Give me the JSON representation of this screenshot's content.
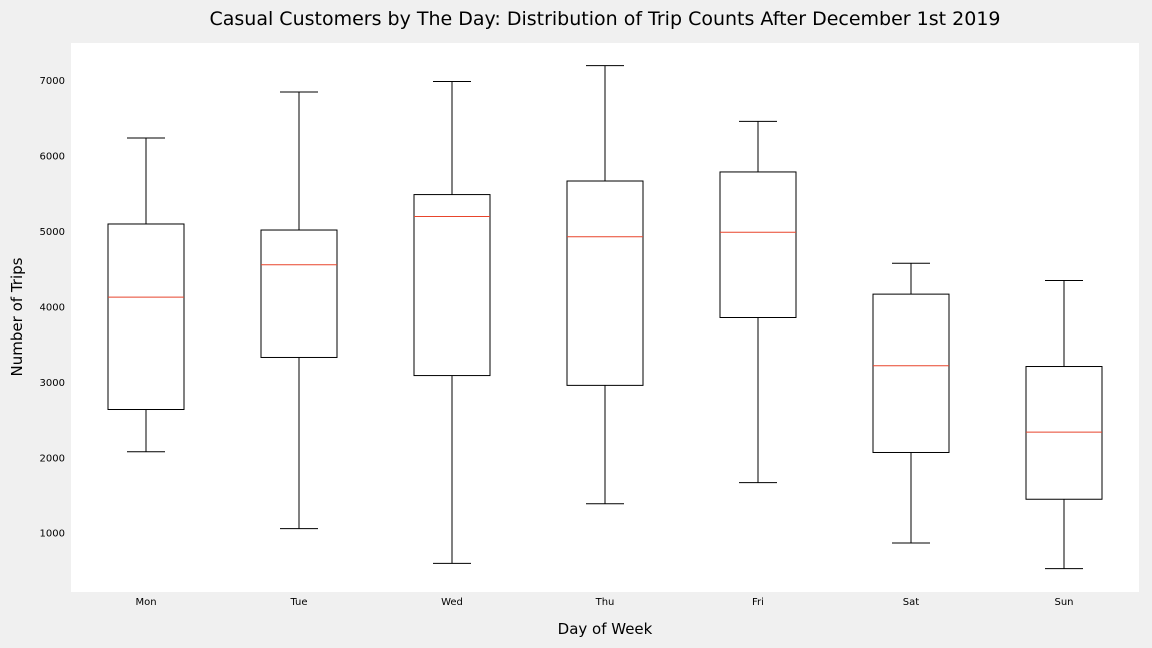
{
  "chart_data": {
    "type": "box",
    "title": "Casual Customers by The Day: Distribution of Trip Counts After December 1st 2019",
    "xlabel": "Day of Week",
    "ylabel": "Number of Trips",
    "categories": [
      "Mon",
      "Tue",
      "Wed",
      "Thu",
      "Fri",
      "Sat",
      "Sun"
    ],
    "yticks": [
      1000,
      2000,
      3000,
      4000,
      5000,
      6000,
      7000
    ],
    "ylim": [
      220,
      7500
    ],
    "grid": false,
    "boxes": [
      {
        "category": "Mon",
        "whisker_low": 2080,
        "q1": 2640,
        "median": 4130,
        "q3": 5100,
        "whisker_high": 6240
      },
      {
        "category": "Tue",
        "whisker_low": 1060,
        "q1": 3330,
        "median": 4560,
        "q3": 5020,
        "whisker_high": 6850
      },
      {
        "category": "Wed",
        "whisker_low": 600,
        "q1": 3090,
        "median": 5200,
        "q3": 5490,
        "whisker_high": 6990
      },
      {
        "category": "Thu",
        "whisker_low": 1390,
        "q1": 2960,
        "median": 4930,
        "q3": 5670,
        "whisker_high": 7200
      },
      {
        "category": "Fri",
        "whisker_low": 1670,
        "q1": 3860,
        "median": 4990,
        "q3": 5790,
        "whisker_high": 6460
      },
      {
        "category": "Sat",
        "whisker_low": 870,
        "q1": 2070,
        "median": 3220,
        "q3": 4170,
        "whisker_high": 4580
      },
      {
        "category": "Sun",
        "whisker_low": 530,
        "q1": 1450,
        "median": 2340,
        "q3": 3210,
        "whisker_high": 4350
      }
    ],
    "colors": {
      "box": "#000000",
      "median": "#e8452c",
      "plot_background": "#ffffff",
      "figure_background": "#f0f0f0"
    }
  }
}
